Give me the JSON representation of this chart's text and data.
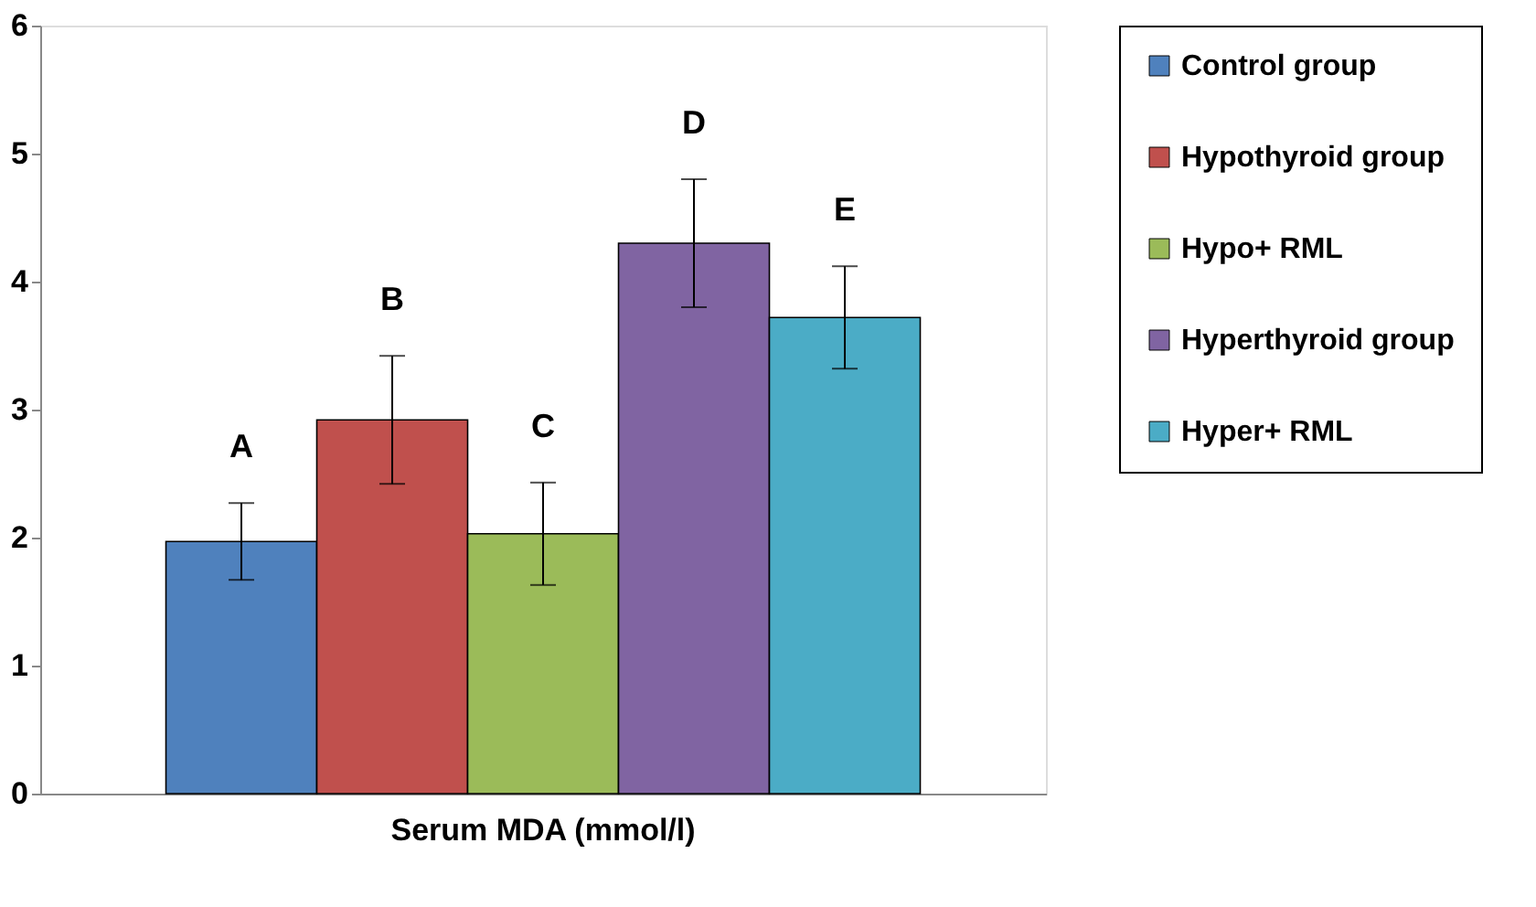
{
  "chart_data": {
    "type": "bar",
    "categories": [
      "Serum MDA (mmol/l)"
    ],
    "ylim": [
      0,
      6
    ],
    "yticks": [
      0,
      1,
      2,
      3,
      4,
      5,
      6
    ],
    "grid": false,
    "legend": "right",
    "series": [
      {
        "name": "Control group",
        "color": "#4f81bd",
        "values": [
          1.97
        ],
        "errors": [
          0.3
        ],
        "value_labels": [
          "A"
        ]
      },
      {
        "name": "Hypothyroid group",
        "color": "#c0504d",
        "values": [
          2.92
        ],
        "errors": [
          0.5
        ],
        "value_labels": [
          "B"
        ]
      },
      {
        "name": "Hypo+ RML",
        "color": "#9bbb59",
        "values": [
          2.03
        ],
        "errors": [
          0.4
        ],
        "value_labels": [
          "C"
        ]
      },
      {
        "name": "Hyperthyroid group",
        "color": "#8064a2",
        "values": [
          4.3
        ],
        "errors": [
          0.5
        ],
        "value_labels": [
          "D"
        ]
      },
      {
        "name": "Hyper+ RML",
        "color": "#4bacc6",
        "values": [
          3.72
        ],
        "errors": [
          0.4
        ],
        "value_labels": [
          "E"
        ]
      }
    ]
  }
}
